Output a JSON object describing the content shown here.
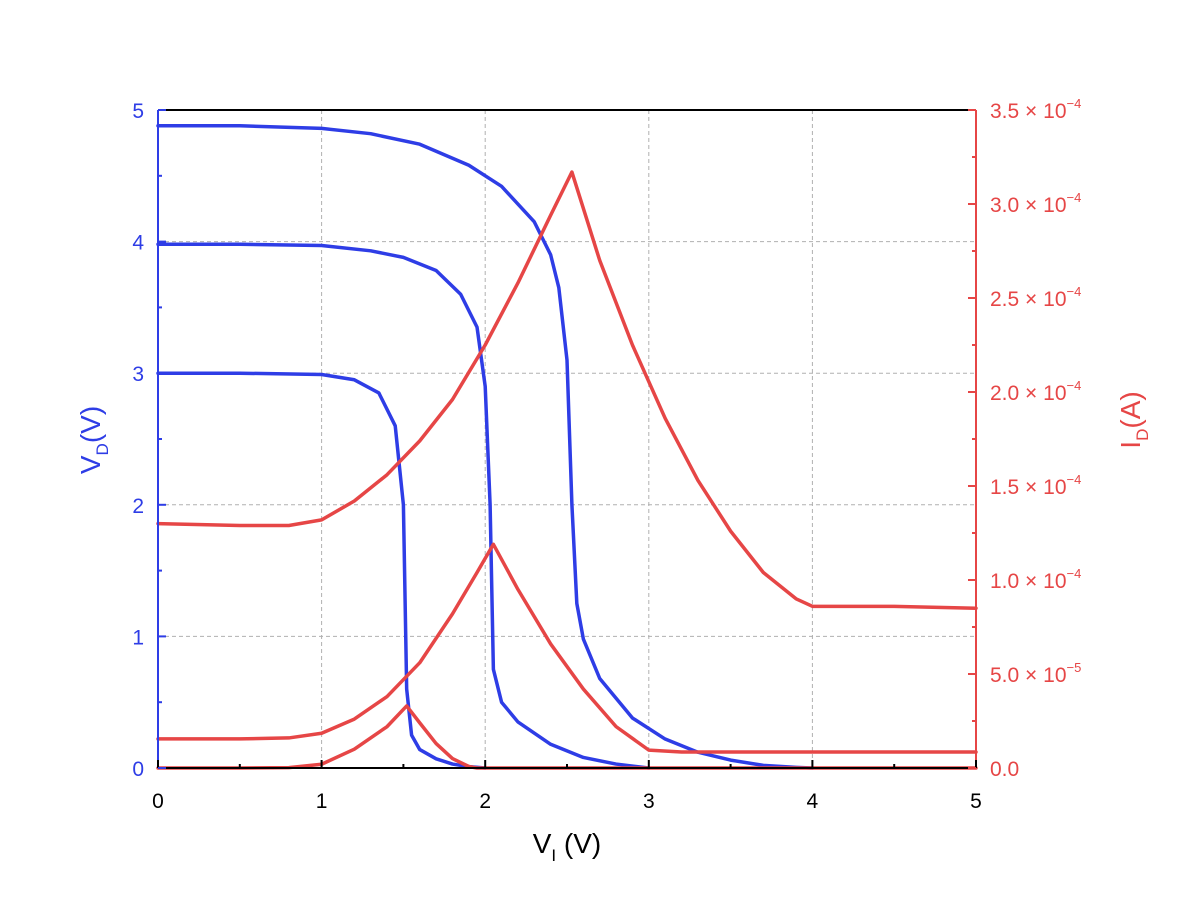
{
  "chart_data": {
    "type": "line",
    "colors": {
      "left": "#2e3de6",
      "right": "#e64646",
      "frame": "#000000",
      "grid": "#b0b0b0"
    },
    "x_axis": {
      "label_main": "V",
      "label_sub": "I",
      "label_unit": " (V)",
      "range": [
        0,
        5
      ],
      "ticks": [
        0,
        1,
        2,
        3,
        4,
        5
      ],
      "tick_labels": [
        "0",
        "1",
        "2",
        "3",
        "4",
        "5"
      ]
    },
    "y_left": {
      "label_main": "V",
      "label_sub": "D",
      "label_unit": "(V)",
      "range": [
        0,
        5
      ],
      "ticks": [
        0,
        1,
        2,
        3,
        4,
        5
      ],
      "tick_labels": [
        "0",
        "1",
        "2",
        "3",
        "4",
        "5"
      ]
    },
    "y_right": {
      "label_main": "I",
      "label_sub": "D",
      "label_unit": "(A)",
      "range": [
        0,
        0.00035
      ],
      "ticks": [
        0,
        5e-05,
        0.0001,
        0.00015,
        0.0002,
        0.00025,
        0.0003,
        0.00035
      ],
      "tick_labels": [
        {
          "mant": "0.0",
          "exp": ""
        },
        {
          "mant": "5.0",
          "exp": "−5"
        },
        {
          "mant": "1.0",
          "exp": "−4"
        },
        {
          "mant": "1.5",
          "exp": "−4"
        },
        {
          "mant": "2.0",
          "exp": "−4"
        },
        {
          "mant": "2.5",
          "exp": "−4"
        },
        {
          "mant": "3.0",
          "exp": "−4"
        },
        {
          "mant": "3.5",
          "exp": "−4"
        }
      ],
      "times_base": "× 10"
    },
    "grid": true,
    "series": [
      {
        "axis": "left",
        "x": [
          0,
          0.5,
          1.0,
          1.2,
          1.35,
          1.45,
          1.5,
          1.52,
          1.55,
          1.6,
          1.7,
          1.8,
          1.9,
          2.0
        ],
        "y": [
          3.0,
          3.0,
          2.99,
          2.95,
          2.85,
          2.6,
          2.0,
          0.6,
          0.25,
          0.14,
          0.07,
          0.03,
          0.01,
          0.0
        ]
      },
      {
        "axis": "left",
        "x": [
          0,
          0.5,
          1.0,
          1.3,
          1.5,
          1.7,
          1.85,
          1.95,
          2.0,
          2.03,
          2.05,
          2.1,
          2.2,
          2.4,
          2.6,
          2.8,
          3.0
        ],
        "y": [
          3.98,
          3.98,
          3.97,
          3.93,
          3.88,
          3.78,
          3.6,
          3.35,
          2.9,
          2.0,
          0.75,
          0.5,
          0.35,
          0.18,
          0.08,
          0.03,
          0.0
        ]
      },
      {
        "axis": "left",
        "x": [
          0,
          0.5,
          1.0,
          1.3,
          1.6,
          1.9,
          2.1,
          2.3,
          2.4,
          2.45,
          2.5,
          2.53,
          2.56,
          2.6,
          2.7,
          2.9,
          3.1,
          3.3,
          3.5,
          3.7,
          3.9,
          4.0
        ],
        "y": [
          4.88,
          4.88,
          4.86,
          4.82,
          4.74,
          4.58,
          4.42,
          4.15,
          3.9,
          3.65,
          3.1,
          2.0,
          1.25,
          0.98,
          0.68,
          0.38,
          0.22,
          0.12,
          0.06,
          0.02,
          0.005,
          0.0
        ]
      },
      {
        "axis": "right",
        "x": [
          0,
          0.5,
          0.8,
          1.0,
          1.2,
          1.4,
          1.52,
          1.6,
          1.7,
          1.8,
          1.9,
          1.95,
          5.0
        ],
        "y": [
          0,
          0,
          2e-07,
          2e-06,
          1e-05,
          2.2e-05,
          3.3e-05,
          2.4e-05,
          1.3e-05,
          5e-06,
          8e-07,
          0,
          0
        ]
      },
      {
        "axis": "right",
        "x": [
          0,
          0.5,
          0.8,
          1.0,
          1.2,
          1.4,
          1.6,
          1.8,
          1.95,
          2.05,
          2.2,
          2.4,
          2.6,
          2.8,
          3.0,
          3.2,
          4.0,
          5.0
        ],
        "y": [
          1.55e-05,
          1.55e-05,
          1.6e-05,
          1.85e-05,
          2.6e-05,
          3.8e-05,
          5.6e-05,
          8.2e-05,
          0.000104,
          0.000119,
          9.5e-05,
          6.6e-05,
          4.2e-05,
          2.2e-05,
          9.5e-06,
          8.5e-06,
          8.5e-06,
          8.5e-06
        ]
      },
      {
        "axis": "right",
        "x": [
          0,
          0.5,
          0.8,
          1.0,
          1.2,
          1.4,
          1.6,
          1.8,
          2.0,
          2.2,
          2.4,
          2.53,
          2.7,
          2.9,
          3.1,
          3.3,
          3.5,
          3.7,
          3.9,
          4.0,
          4.5,
          5.0
        ],
        "y": [
          0.00013,
          0.000129,
          0.000129,
          0.000132,
          0.000142,
          0.000156,
          0.000174,
          0.000196,
          0.000225,
          0.000258,
          0.000294,
          0.000317,
          0.00027,
          0.000225,
          0.000186,
          0.000153,
          0.000126,
          0.000104,
          9e-05,
          8.6e-05,
          8.6e-05,
          8.5e-05
        ]
      }
    ]
  }
}
